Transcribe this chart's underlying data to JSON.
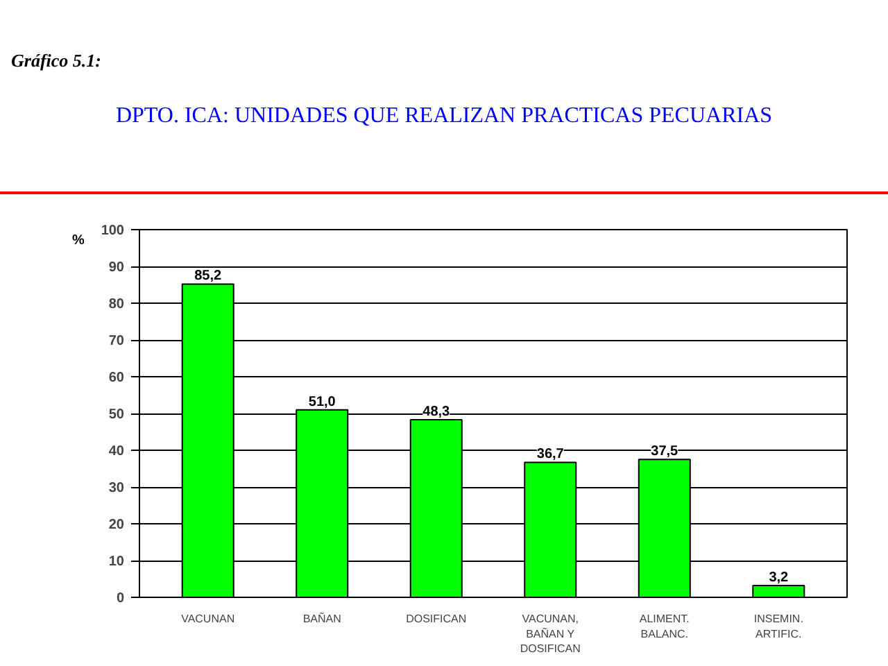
{
  "chart_data": {
    "type": "bar",
    "title": "DPTO. ICA: UNIDADES QUE REALIZAN PRACTICAS PECUARIAS",
    "annotations": [
      "Gráfico 5.1:"
    ],
    "ylabel": "%",
    "categories": [
      "VACUNAN",
      "BAÑAN",
      "DOSIFICAN",
      "VACUNAN,\nBAÑAN Y\nDOSIFICAN",
      "ALIMENT.\nBALANC.",
      "INSEMIN.\nARTIFIC."
    ],
    "values": [
      85.2,
      51.0,
      48.3,
      36.7,
      37.5,
      3.2
    ],
    "value_labels": [
      "85,2",
      "51,0",
      "48,3",
      "36,7",
      "37,5",
      "3,2"
    ],
    "color": "#00ff00",
    "ylim": [
      0,
      100
    ],
    "yticks": [
      0,
      10,
      20,
      30,
      40,
      50,
      60,
      70,
      80,
      90,
      100
    ],
    "grid": "y"
  }
}
